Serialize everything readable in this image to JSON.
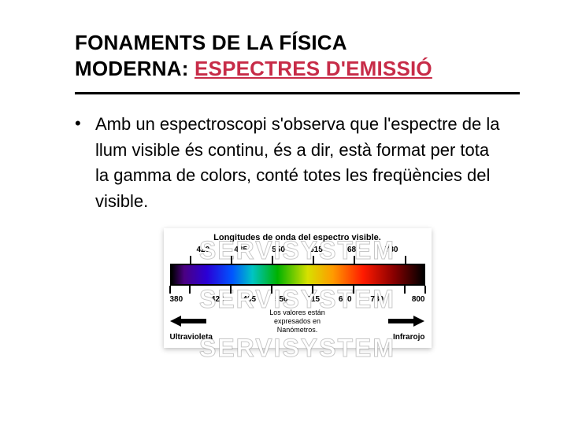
{
  "title": {
    "line1": "FONAMENTS DE LA FÍSICA",
    "line2_pre": "MODERNA: ",
    "line2_accent": "ESPECTRES D'EMISSIÓ"
  },
  "bullet": {
    "marker": "•",
    "text": "Amb un espectroscopi s'observa que l'espectre de la llum visible és continu, és a dir, està format per tota la gamma de colors, conté totes les freqüències del visible."
  },
  "figure": {
    "title": "Longitudes de onda del espectro visible.",
    "top_ticks": {
      "values": [
        "420",
        "485",
        "550",
        "615",
        "680",
        "780"
      ],
      "positions_pct": [
        8,
        24,
        40,
        56,
        72,
        92
      ]
    },
    "bottom_ticks": {
      "values": [
        "380",
        "420",
        "485",
        "550",
        "615",
        "680",
        "780",
        "800"
      ],
      "positions_pct": [
        0,
        8,
        24,
        40,
        56,
        72,
        92,
        100
      ]
    },
    "spectrum_stops": [
      {
        "pct": 0,
        "color": "#000000"
      },
      {
        "pct": 5,
        "color": "#4b0082"
      },
      {
        "pct": 14,
        "color": "#2a00d6"
      },
      {
        "pct": 24,
        "color": "#0055ff"
      },
      {
        "pct": 32,
        "color": "#00c4c4"
      },
      {
        "pct": 42,
        "color": "#00b200"
      },
      {
        "pct": 54,
        "color": "#d7e000"
      },
      {
        "pct": 64,
        "color": "#ff9a00"
      },
      {
        "pct": 76,
        "color": "#ff1a00"
      },
      {
        "pct": 88,
        "color": "#8a0000"
      },
      {
        "pct": 100,
        "color": "#000000"
      }
    ],
    "uv_label": "Ultravioleta",
    "ir_label": "Infrarojo",
    "caption_l1": "Los valores están",
    "caption_l2": "expresados en",
    "caption_l3": "Nanómetros.",
    "watermark": "SERVISYSTEM",
    "colors": {
      "arrow": "#000000",
      "background": "#ffffff",
      "border": "#000000"
    }
  },
  "accent_color": "#c72c48"
}
